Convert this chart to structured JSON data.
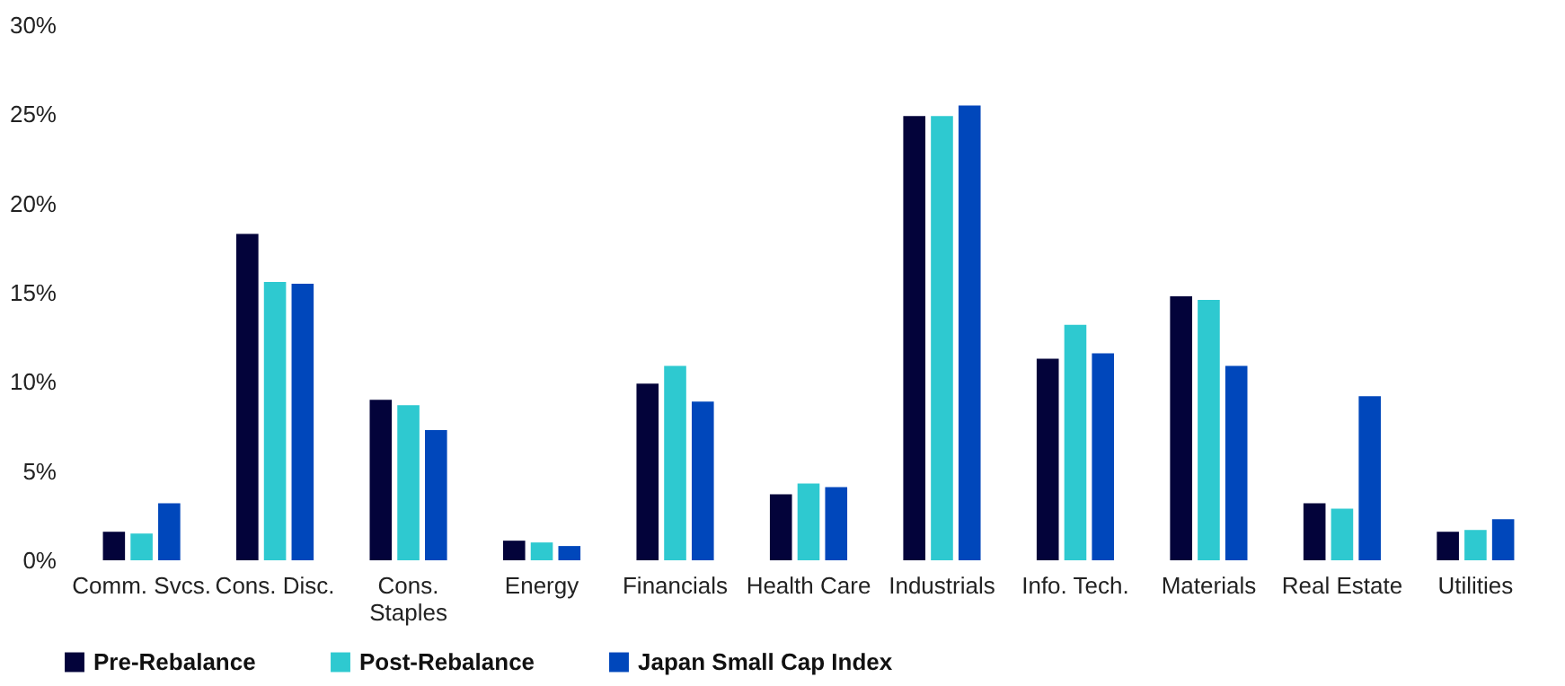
{
  "chart_data": {
    "type": "bar",
    "categories": [
      "Comm. Svcs.",
      "Cons. Disc.",
      "Cons. Staples",
      "Energy",
      "Financials",
      "Health Care",
      "Industrials",
      "Info. Tech.",
      "Materials",
      "Real Estate",
      "Utilities"
    ],
    "series": [
      {
        "name": "Pre-Rebalance",
        "color": "#03033a",
        "values": [
          1.6,
          18.3,
          9.0,
          1.1,
          9.9,
          3.7,
          24.9,
          11.3,
          14.8,
          3.2,
          1.6
        ]
      },
      {
        "name": "Post-Rebalance",
        "color": "#2ec9d0",
        "values": [
          1.5,
          15.6,
          8.7,
          1.0,
          10.9,
          4.3,
          24.9,
          13.2,
          14.6,
          2.9,
          1.7
        ]
      },
      {
        "name": "Japan Small Cap Index",
        "color": "#0047bb",
        "values": [
          3.2,
          15.5,
          7.3,
          0.8,
          8.9,
          4.1,
          25.5,
          11.6,
          10.9,
          9.2,
          2.3
        ]
      }
    ],
    "ylim": [
      0,
      30
    ],
    "yticks": [
      {
        "value": 0,
        "label": "0%"
      },
      {
        "value": 5,
        "label": "5%"
      },
      {
        "value": 10,
        "label": "10%"
      },
      {
        "value": 15,
        "label": "15%"
      },
      {
        "value": 20,
        "label": "20%"
      },
      {
        "value": 25,
        "label": "25%"
      },
      {
        "value": 30,
        "label": "30%"
      }
    ],
    "grid": false,
    "legend": "bottom"
  }
}
